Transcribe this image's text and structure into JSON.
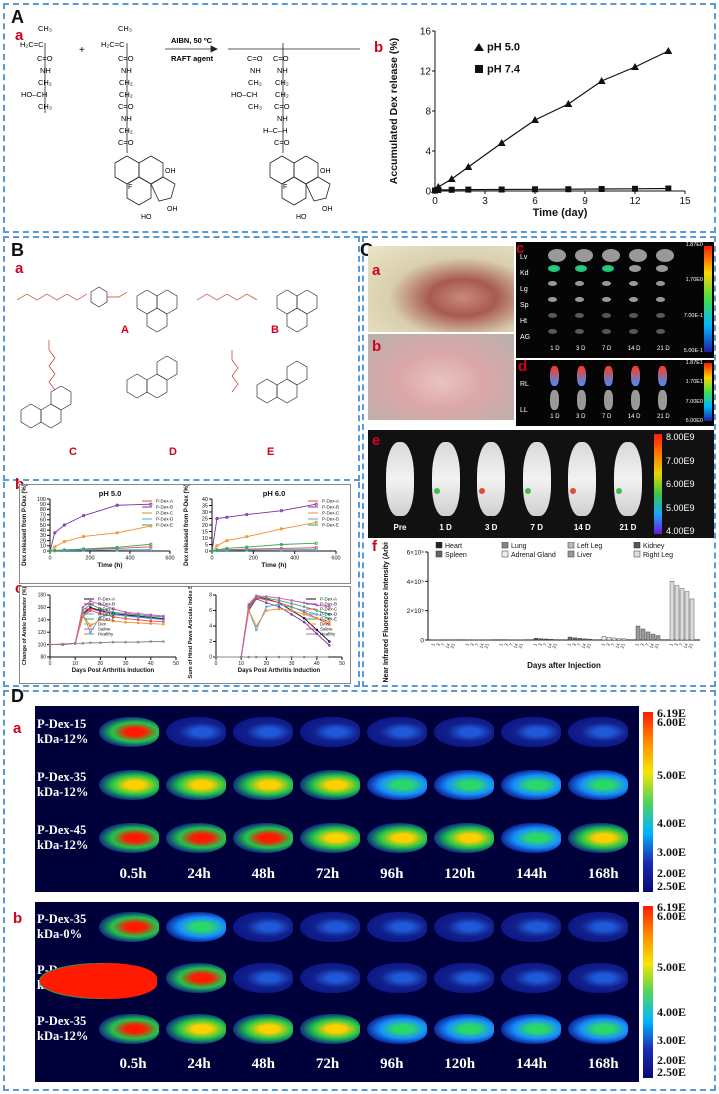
{
  "panels": {
    "A": {
      "label": "A",
      "a": "a",
      "b": "b"
    },
    "B": {
      "label": "B",
      "a": "a",
      "b": "b",
      "c": "c"
    },
    "C": {
      "label": "C",
      "a": "a",
      "b": "b",
      "c": "c",
      "d": "d",
      "e": "e",
      "f": "f"
    },
    "D": {
      "label": "D",
      "a": "a",
      "b": "b"
    }
  },
  "reaction": {
    "arrow_top": "AIBN, 50 ºC",
    "arrow_bottom": "RAFT agent",
    "plus": "+"
  },
  "structures": {
    "A": "A",
    "B": "B",
    "C": "C",
    "D": "D",
    "E": "E"
  },
  "colors": {
    "border": "#5b9bd5",
    "panel_label_red": "#d0021b"
  },
  "chart_data": [
    {
      "id": "A-b",
      "type": "line",
      "xlabel": "Time (day)",
      "ylabel": "Accumulated Dex release (%)",
      "xlim": [
        0,
        15
      ],
      "ylim": [
        0,
        16
      ],
      "xticks": [
        0,
        3,
        6,
        9,
        12,
        15
      ],
      "yticks": [
        0,
        4,
        8,
        12,
        16
      ],
      "legend": "top-left",
      "series": [
        {
          "name": "pH 5.0",
          "marker": "triangle",
          "x": [
            0,
            0.2,
            1,
            2,
            4,
            6,
            8,
            10,
            12,
            14
          ],
          "y": [
            0.1,
            0.4,
            1.2,
            2.4,
            4.8,
            7.1,
            8.7,
            11.0,
            12.4,
            14.0
          ]
        },
        {
          "name": "pH 7.4",
          "marker": "square",
          "x": [
            0,
            0.2,
            1,
            2,
            4,
            6,
            8,
            10,
            12,
            14
          ],
          "y": [
            0.05,
            0.1,
            0.12,
            0.14,
            0.15,
            0.17,
            0.18,
            0.2,
            0.22,
            0.25
          ]
        }
      ]
    },
    {
      "id": "B-b-1",
      "type": "line",
      "title": "pH 5.0",
      "xlabel": "Time (h)",
      "ylabel": "Dex released from P-Dex (%)",
      "xlim": [
        0,
        600
      ],
      "ylim": [
        0,
        100
      ],
      "xticks": [
        0,
        200,
        400,
        600
      ],
      "yticks": [
        0,
        10,
        20,
        30,
        40,
        50,
        60,
        70,
        80,
        90,
        100
      ],
      "series": [
        {
          "name": "P-Dex-A",
          "color": "#e8453c",
          "x": [
            0,
            24,
            72,
            168,
            336,
            504
          ],
          "y": [
            0,
            1,
            2,
            3,
            5,
            8
          ]
        },
        {
          "name": "P-Dex-B",
          "color": "#7b2fa8",
          "x": [
            0,
            24,
            72,
            168,
            336,
            504
          ],
          "y": [
            0,
            35,
            50,
            68,
            88,
            90
          ]
        },
        {
          "name": "P-Dex-C",
          "color": "#f28c28",
          "x": [
            0,
            24,
            72,
            168,
            336,
            504
          ],
          "y": [
            0,
            8,
            18,
            28,
            35,
            48
          ]
        },
        {
          "name": "P-Dex-D",
          "color": "#4aa8e0",
          "x": [
            0,
            24,
            72,
            168,
            336,
            504
          ],
          "y": [
            0,
            0.5,
            1,
            1.5,
            2,
            3
          ]
        },
        {
          "name": "P-Dex-E",
          "color": "#3aa655",
          "x": [
            0,
            24,
            72,
            168,
            336,
            504
          ],
          "y": [
            0,
            1,
            2,
            4,
            7,
            13
          ]
        }
      ]
    },
    {
      "id": "B-b-2",
      "type": "line",
      "title": "pH 6.0",
      "xlabel": "Time (h)",
      "ylabel": "Dex released from P-Dex (%)",
      "xlim": [
        0,
        600
      ],
      "ylim": [
        0,
        40
      ],
      "xticks": [
        0,
        200,
        400,
        600
      ],
      "yticks": [
        0,
        5,
        10,
        15,
        20,
        25,
        30,
        35,
        40
      ],
      "series": [
        {
          "name": "P-Dex-A",
          "color": "#e8453c",
          "x": [
            0,
            24,
            72,
            168,
            336,
            504
          ],
          "y": [
            0,
            0.5,
            1,
            1.5,
            2,
            2.5
          ]
        },
        {
          "name": "P-Dex-B",
          "color": "#7b2fa8",
          "x": [
            0,
            24,
            72,
            168,
            336,
            504
          ],
          "y": [
            0,
            25,
            26,
            28,
            31,
            36
          ]
        },
        {
          "name": "P-Dex-C",
          "color": "#f28c28",
          "x": [
            0,
            24,
            72,
            168,
            336,
            504
          ],
          "y": [
            0,
            4,
            8,
            11,
            17,
            22
          ]
        },
        {
          "name": "P-Dex-D",
          "color": "#4aa8e0",
          "x": [
            0,
            24,
            72,
            168,
            336,
            504
          ],
          "y": [
            0,
            0.3,
            0.5,
            0.8,
            1,
            1.2
          ]
        },
        {
          "name": "P-Dex-E",
          "color": "#3aa655",
          "x": [
            0,
            24,
            72,
            168,
            336,
            504
          ],
          "y": [
            0,
            1,
            2,
            3,
            5,
            6
          ]
        }
      ]
    },
    {
      "id": "B-c-1",
      "type": "line",
      "xlabel": "Days Post Arthritis Induction",
      "ylabel": "Change of Ankle Diameter (%)",
      "xlim": [
        0,
        50
      ],
      "ylim": [
        80,
        180
      ],
      "xticks": [
        0,
        10,
        20,
        30,
        40,
        50
      ],
      "yticks": [
        80,
        100,
        120,
        140,
        160,
        180
      ],
      "series": [
        {
          "name": "P-Dex-A",
          "color": "#111111",
          "x": [
            0,
            5,
            10,
            13,
            16,
            20,
            25,
            30,
            35,
            40,
            45
          ],
          "y": [
            100,
            100,
            102,
            150,
            160,
            155,
            150,
            148,
            146,
            144,
            142
          ]
        },
        {
          "name": "P-Dex-B",
          "color": "#7b2fa8",
          "x": [
            0,
            5,
            10,
            13,
            16,
            20,
            25,
            30,
            35,
            40,
            45
          ],
          "y": [
            100,
            100,
            102,
            148,
            158,
            154,
            150,
            147,
            145,
            143,
            141
          ]
        },
        {
          "name": "P-Dex-C",
          "color": "#e8453c",
          "x": [
            0,
            5,
            10,
            13,
            16,
            20,
            25,
            30,
            35,
            40,
            45
          ],
          "y": [
            100,
            100,
            102,
            145,
            155,
            150,
            145,
            142,
            140,
            138,
            137
          ]
        },
        {
          "name": "P-Dex-D",
          "color": "#4aa8e0",
          "x": [
            0,
            5,
            10,
            13,
            16,
            20,
            25,
            30,
            35,
            40,
            45
          ],
          "y": [
            100,
            100,
            102,
            150,
            120,
            145,
            148,
            146,
            144,
            142,
            140
          ]
        },
        {
          "name": "P-Dex-E",
          "color": "#3aa655",
          "x": [
            0,
            5,
            10,
            13,
            16,
            20,
            25,
            30,
            35,
            40,
            45
          ],
          "y": [
            100,
            100,
            102,
            155,
            165,
            158,
            152,
            150,
            148,
            146,
            145
          ]
        },
        {
          "name": "Dex",
          "color": "#f28c28",
          "x": [
            0,
            5,
            10,
            13,
            16,
            20,
            25,
            30,
            35,
            40,
            45
          ],
          "y": [
            100,
            100,
            102,
            148,
            130,
            140,
            138,
            136,
            135,
            134,
            133
          ]
        },
        {
          "name": "Saline",
          "color": "#d04bc0",
          "x": [
            0,
            5,
            10,
            13,
            16,
            20,
            25,
            30,
            35,
            40,
            45
          ],
          "y": [
            100,
            100,
            102,
            160,
            170,
            165,
            158,
            152,
            150,
            148,
            146
          ]
        },
        {
          "name": "Healthy",
          "color": "#888888",
          "x": [
            0,
            5,
            10,
            13,
            16,
            20,
            25,
            30,
            35,
            40,
            45
          ],
          "y": [
            100,
            101,
            102,
            102,
            103,
            103,
            104,
            104,
            104,
            105,
            105
          ]
        }
      ]
    },
    {
      "id": "B-c-2",
      "type": "line",
      "xlabel": "Days Post Arthritis Induction",
      "ylabel": "Sum of Hind Paws Articular Index Score",
      "xlim": [
        0,
        50
      ],
      "ylim": [
        0,
        8
      ],
      "xticks": [
        0,
        10,
        20,
        30,
        40,
        50
      ],
      "yticks": [
        0,
        2,
        4,
        6,
        8
      ],
      "series": [
        {
          "name": "P-Dex-A",
          "color": "#111111",
          "x": [
            0,
            10,
            13,
            16,
            20,
            25,
            30,
            35,
            40,
            45
          ],
          "y": [
            0,
            0,
            6.5,
            7.8,
            7.5,
            7,
            6,
            5,
            3.5,
            2
          ]
        },
        {
          "name": "P-Dex-B",
          "color": "#7b2fa8",
          "x": [
            0,
            10,
            13,
            16,
            20,
            25,
            30,
            35,
            40,
            45
          ],
          "y": [
            0,
            0,
            6,
            7.5,
            7,
            6.5,
            5.5,
            4.5,
            3,
            1.5
          ]
        },
        {
          "name": "P-Dex-C",
          "color": "#e8453c",
          "x": [
            0,
            10,
            13,
            16,
            20,
            25,
            30,
            35,
            40,
            45
          ],
          "y": [
            0,
            0,
            6.2,
            7.6,
            7.4,
            7,
            6.5,
            5.8,
            5,
            4.2
          ]
        },
        {
          "name": "P-Dex-D",
          "color": "#4aa8e0",
          "x": [
            0,
            10,
            13,
            16,
            20,
            25,
            30,
            35,
            40,
            45
          ],
          "y": [
            0,
            0,
            6,
            3.5,
            6.5,
            6.8,
            6.4,
            6,
            5.5,
            5
          ]
        },
        {
          "name": "P-Dex-E",
          "color": "#3aa655",
          "x": [
            0,
            10,
            13,
            16,
            20,
            25,
            30,
            35,
            40,
            45
          ],
          "y": [
            0,
            0,
            6.4,
            7.8,
            7.6,
            7.3,
            6.9,
            6.5,
            6,
            5.5
          ]
        },
        {
          "name": "Dex",
          "color": "#f28c28",
          "x": [
            0,
            10,
            13,
            16,
            20,
            25,
            30,
            35,
            40,
            45
          ],
          "y": [
            0,
            0,
            6,
            4,
            6,
            6.2,
            6,
            5.5,
            5,
            4.5
          ]
        },
        {
          "name": "Saline",
          "color": "#d04bc0",
          "x": [
            0,
            10,
            13,
            16,
            20,
            25,
            30,
            35,
            40,
            45
          ],
          "y": [
            0,
            0,
            6.8,
            7.9,
            7.8,
            7.6,
            7.3,
            7,
            6.7,
            6.5
          ]
        },
        {
          "name": "Healthy",
          "color": "#888888",
          "x": [
            0,
            10,
            13,
            16,
            20,
            25,
            30,
            35,
            40,
            45
          ],
          "y": [
            0,
            0,
            0,
            0,
            0,
            0,
            0,
            0,
            0,
            0
          ]
        }
      ]
    },
    {
      "id": "C-f",
      "type": "bar",
      "xlabel": "Days after Injection",
      "ylabel": "Near Infrared Fluorescence Intensity (Arbitrary Unit)",
      "ylim": [
        0,
        600000.0
      ],
      "ytick_labels": [
        "6×10⁵",
        "4×10⁵",
        "2×10⁵",
        "0"
      ],
      "groups": [
        "Heart",
        "Lung",
        "Left Leg",
        "Kidney",
        "Spleen",
        "Adrenal Gland",
        "Liver",
        "Right Leg"
      ],
      "days": [
        "1",
        "3",
        "7",
        "14",
        "21"
      ],
      "values": [
        [
          1500,
          1200,
          900,
          700,
          500
        ],
        [
          2000,
          1600,
          1100,
          900,
          700
        ],
        [
          3000,
          2500,
          2000,
          1500,
          1200
        ],
        [
          12000,
          9000,
          7000,
          5000,
          3000
        ],
        [
          20000,
          15000,
          11000,
          8000,
          6000
        ],
        [
          25000,
          18000,
          14000,
          10000,
          8000
        ],
        [
          95000,
          75000,
          55000,
          40000,
          30000
        ],
        [
          400000,
          370000,
          350000,
          330000,
          280000
        ]
      ]
    }
  ],
  "C": {
    "organ_labels": [
      "Lv",
      "Kd",
      "Lg",
      "Sp",
      "Ht",
      "AG"
    ],
    "day_labels": [
      "1 D",
      "3 D",
      "7 D",
      "14 D",
      "21 D"
    ],
    "leg_labels": [
      "RL",
      "LL"
    ],
    "scale1": [
      "1.87E0",
      "1.70E0",
      "7.00E-1",
      "5.00E-1"
    ],
    "scale2": [
      "1.87E1",
      "1.70E1",
      "7.00E0",
      "5.00E0"
    ],
    "e_labels": [
      "Pre",
      "1 D",
      "3 D",
      "7 D",
      "14 D",
      "21 D"
    ],
    "e_scale": [
      "8.00E9",
      "7.00E9",
      "6.00E9",
      "5.00E9",
      "4.00E9"
    ],
    "legend": [
      "Heart",
      "Lung",
      "Left Leg",
      "Kidney",
      "Spleen",
      "Adrenal Gland",
      "Liver",
      "Right Leg"
    ]
  },
  "D": {
    "a_rows": [
      "P-Dex-15\nkDa-12%",
      "P-Dex-35\nkDa-12%",
      "P-Dex-45\nkDa-12%"
    ],
    "b_rows": [
      "P-Dex-35\nkDa-0%",
      "P-Dex-35\nkDa-6%",
      "P-Dex-35\nkDa-12%"
    ],
    "times": [
      "0.5h",
      "24h",
      "48h",
      "72h",
      "96h",
      "120h",
      "144h",
      "168h"
    ],
    "scale_a": [
      "6.19E",
      "6.00E",
      "5.00E",
      "4.00E",
      "3.00E",
      "2.00E",
      "2.50E"
    ],
    "scale_b": [
      "6.19E",
      "6.00E",
      "5.00E",
      "4.00E",
      "3.00E",
      "2.00E",
      "2.50E"
    ]
  }
}
